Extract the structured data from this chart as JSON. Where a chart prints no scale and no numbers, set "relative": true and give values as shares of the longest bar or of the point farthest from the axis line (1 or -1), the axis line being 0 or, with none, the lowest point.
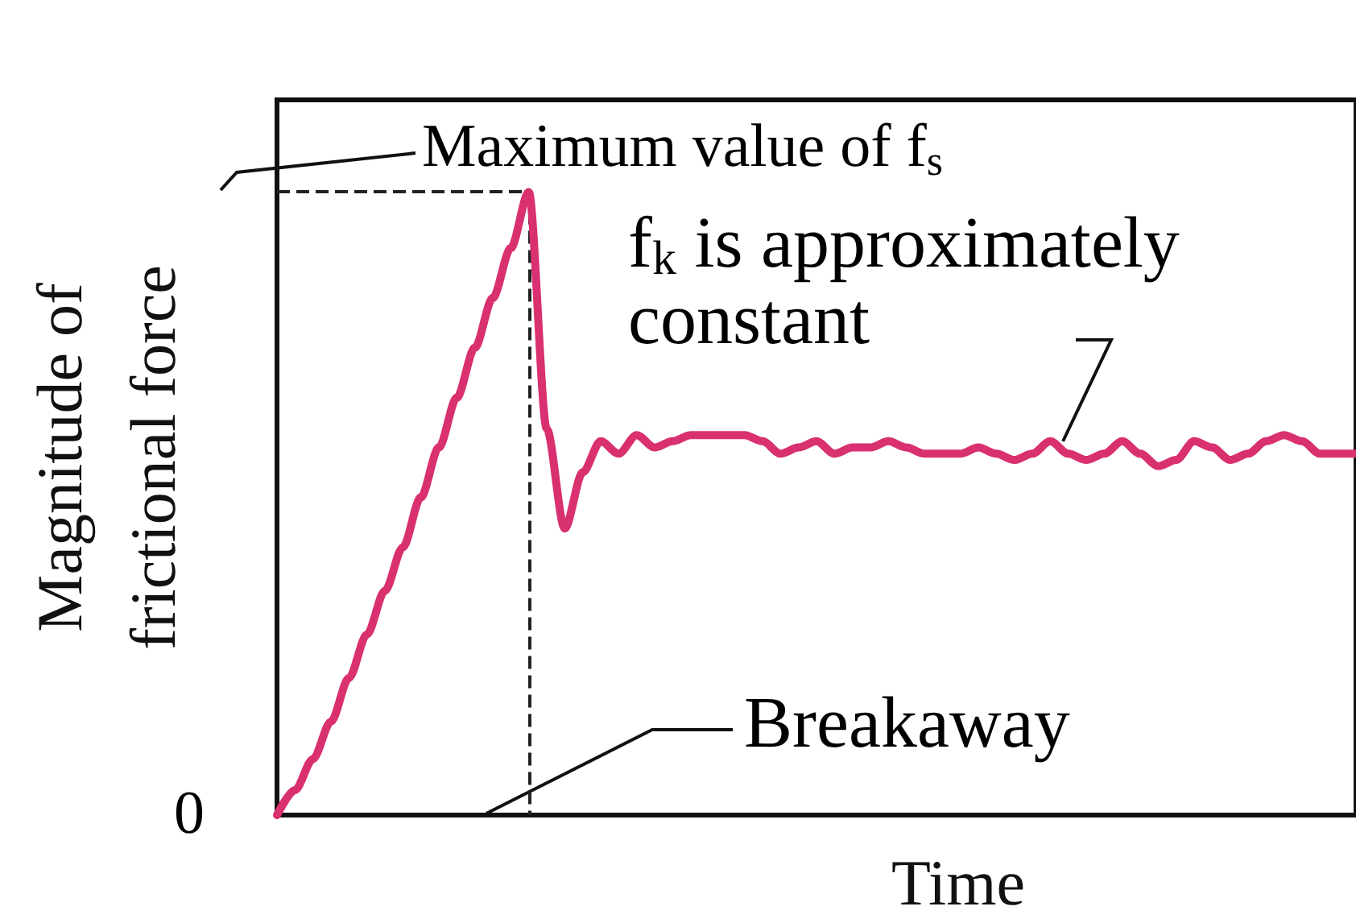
{
  "chart_data": {
    "type": "line",
    "relative": true,
    "xlabel": "Time",
    "ylabel": "Magnitude of\nfrictional force",
    "categories": [
      null,
      null,
      null,
      null,
      null,
      null,
      null,
      null,
      null,
      null,
      null,
      null,
      null,
      null,
      null,
      null,
      null,
      null,
      null,
      null,
      null,
      null,
      null,
      null,
      null,
      null,
      null,
      null,
      null,
      null,
      null,
      null,
      null,
      null,
      null,
      null,
      null,
      null,
      null,
      null,
      null,
      null,
      null,
      null,
      null,
      null,
      null,
      null,
      null,
      null,
      null,
      null,
      null,
      null,
      null,
      null,
      null,
      null,
      null,
      null,
      null
    ],
    "series": [
      {
        "color": "#d9306f",
        "values": [
          0,
          0.04,
          0.09,
          0.15,
          0.22,
          0.29,
          0.36,
          0.43,
          0.51,
          0.59,
          0.67,
          0.75,
          0.83,
          0.91,
          1,
          0.62,
          0.46,
          0.55,
          0.6,
          0.58,
          0.61,
          0.59,
          0.6,
          0.61,
          0.61,
          0.61,
          0.61,
          0.6,
          0.58,
          0.59,
          0.6,
          0.58,
          0.59,
          0.59,
          0.6,
          0.59,
          0.58,
          0.58,
          0.58,
          0.59,
          0.58,
          0.57,
          0.58,
          0.6,
          0.58,
          0.57,
          0.58,
          0.6,
          0.58,
          0.56,
          0.57,
          0.6,
          0.59,
          0.57,
          0.58,
          0.6,
          0.61,
          0.6,
          0.58,
          0.58,
          0.58
        ]
      }
    ],
    "ref_lines": [
      {
        "axis": "y",
        "value": 1,
        "label": "Maximum value of f$_{s}$",
        "line_style": "dashed",
        "color": "#222222"
      }
    ],
    "annotations": [
      "f$_{k}$ is approximately\nconstant",
      "Breakaway",
      "0"
    ],
    "grid": false,
    "marker": "none",
    "line_style": "solid"
  }
}
